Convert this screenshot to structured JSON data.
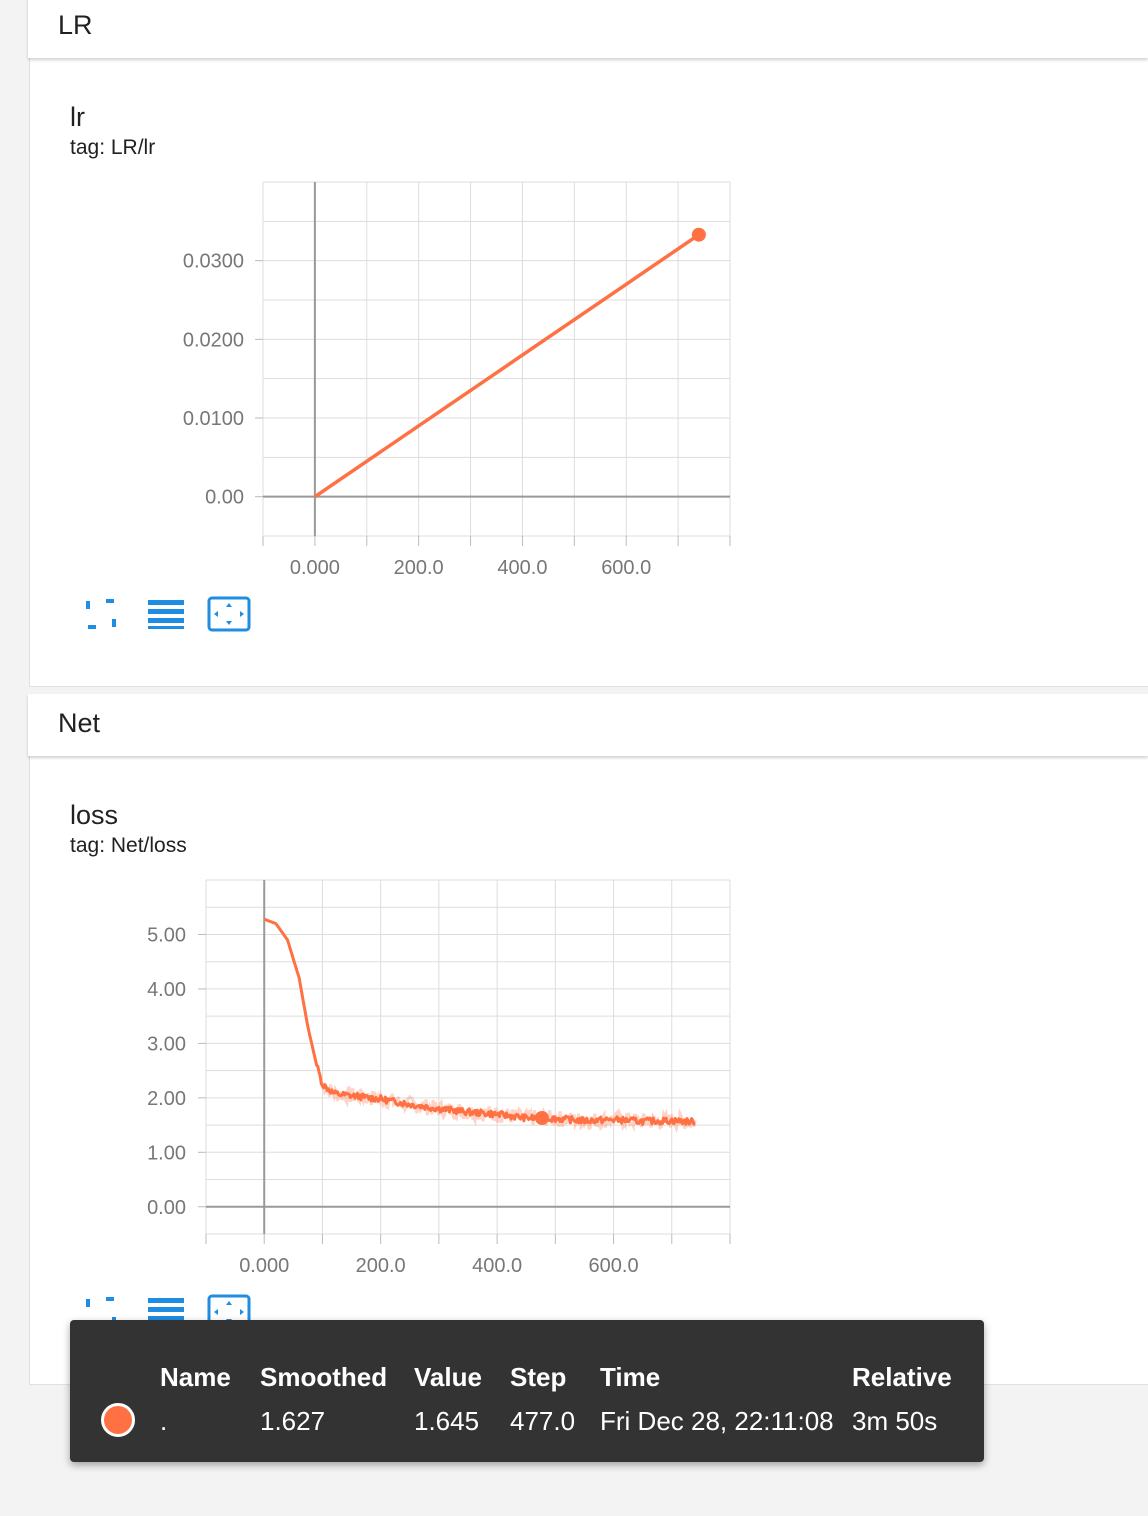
{
  "colors": {
    "accent": "#ff7043",
    "icon": "#1f8de2",
    "grid": "#dddddd",
    "axis": "#999999",
    "tooltip_bg": "#333333"
  },
  "sections": [
    {
      "header": "LR",
      "card": {
        "title": "lr",
        "tag": "tag: LR/lr"
      },
      "buttons": [
        "fullscreen-icon",
        "list-icon",
        "fit-domain-icon"
      ]
    },
    {
      "header": "Net",
      "card": {
        "title": "loss",
        "tag": "tag: Net/loss"
      },
      "buttons": [
        "fullscreen-icon",
        "list-icon",
        "fit-domain-icon"
      ]
    }
  ],
  "chart_data": [
    {
      "type": "line",
      "title": "lr",
      "xlabel": "",
      "ylabel": "",
      "xlim": [
        -100,
        800
      ],
      "ylim": [
        -0.005,
        0.04
      ],
      "x_ticks": [
        "0.000",
        "200.0",
        "400.0",
        "600.0"
      ],
      "y_ticks": [
        "0.00",
        "0.0100",
        "0.0200",
        "0.0300"
      ],
      "series": [
        {
          "x": [
            0,
            740
          ],
          "y": [
            0.0,
            0.0333
          ],
          "marker_at": 740
        }
      ],
      "grid": true
    },
    {
      "type": "line",
      "title": "loss",
      "xlabel": "",
      "ylabel": "",
      "xlim": [
        -100,
        800
      ],
      "ylim": [
        -0.5,
        6.0
      ],
      "x_ticks": [
        "0.000",
        "200.0",
        "400.0",
        "600.0"
      ],
      "y_ticks": [
        "0.00",
        "1.00",
        "2.00",
        "3.00",
        "4.00",
        "5.00"
      ],
      "series": [
        {
          "x": [
            0,
            20,
            40,
            60,
            75,
            90,
            100,
            120,
            140,
            160,
            180,
            200,
            250,
            300,
            350,
            400,
            450,
            477,
            500,
            550,
            600,
            650,
            700,
            740
          ],
          "y": [
            5.28,
            5.2,
            4.9,
            4.2,
            3.3,
            2.6,
            2.25,
            2.08,
            2.05,
            2.03,
            2.0,
            1.98,
            1.88,
            1.8,
            1.74,
            1.7,
            1.63,
            1.63,
            1.62,
            1.58,
            1.6,
            1.57,
            1.58,
            1.56
          ],
          "marker_at": 477
        }
      ],
      "grid": true
    }
  ],
  "tooltip": {
    "headers": [
      "Name",
      "Smoothed",
      "Value",
      "Step",
      "Time",
      "Relative"
    ],
    "row": {
      "name": ".",
      "smoothed": "1.627",
      "value": "1.645",
      "step": "477.0",
      "time": "Fri Dec 28, 22:11:08",
      "relative": "3m 50s"
    }
  }
}
